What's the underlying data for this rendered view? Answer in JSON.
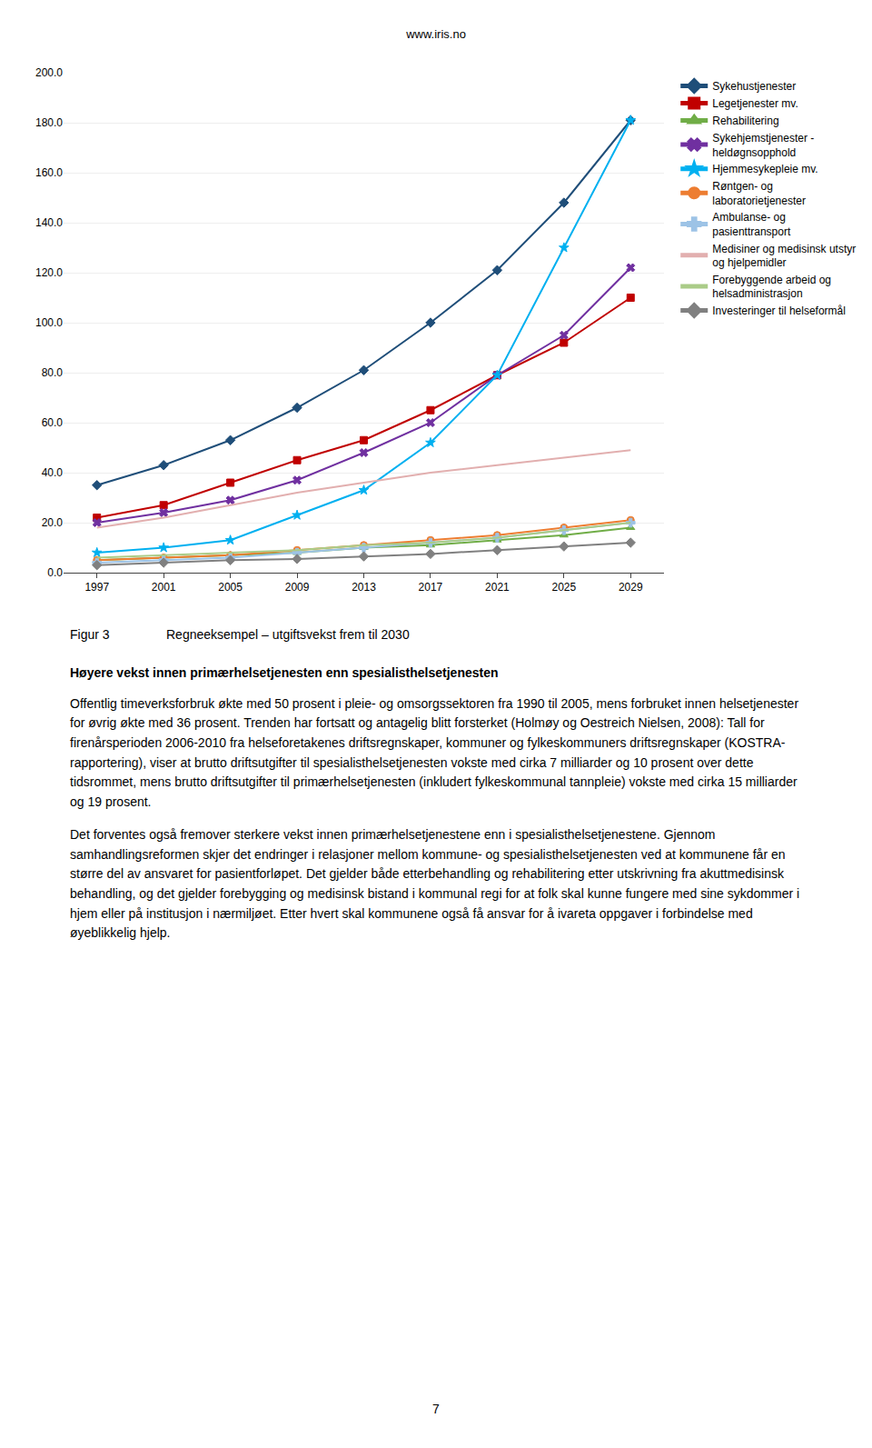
{
  "chart_data": {
    "type": "line",
    "x": [
      1997,
      2001,
      2005,
      2009,
      2013,
      2017,
      2021,
      2025,
      2029
    ],
    "xlim": [
      1995,
      2031
    ],
    "xticks": [
      1997,
      2001,
      2005,
      2009,
      2013,
      2017,
      2021,
      2025,
      2029
    ],
    "ylim": [
      0,
      200
    ],
    "yticks": [
      {
        "value": 0,
        "label": "0.0"
      },
      {
        "value": 20,
        "label": "20.0"
      },
      {
        "value": 40,
        "label": "40.0"
      },
      {
        "value": 60,
        "label": "60.0"
      },
      {
        "value": 80,
        "label": "80.0"
      },
      {
        "value": 100,
        "label": "100.0"
      },
      {
        "value": 120,
        "label": "120.0"
      },
      {
        "value": 140,
        "label": "140.0"
      },
      {
        "value": 160,
        "label": "160.0"
      },
      {
        "value": 180,
        "label": "180.0"
      },
      {
        "value": 200,
        "label": "200.0"
      }
    ],
    "grid": "y",
    "legend": "right",
    "series": [
      {
        "name": "Sykehustjenester",
        "color": "#1F4E79",
        "marker": "diamond",
        "values": [
          35.0,
          43.0,
          53.0,
          66.0,
          81.0,
          100.0,
          121.0,
          148.0,
          181.0
        ]
      },
      {
        "name": "Legetjenester mv.",
        "color": "#C00000",
        "marker": "square",
        "values": [
          22.0,
          27.0,
          36.0,
          45.0,
          53.0,
          65.0,
          79.0,
          92.0,
          110.0
        ]
      },
      {
        "name": "Rehabilitering",
        "color": "#70AD47",
        "marker": "triangle",
        "values": [
          5.0,
          6.0,
          7.0,
          8.0,
          10.0,
          11.0,
          13.0,
          15.0,
          18.0
        ]
      },
      {
        "name": "Sykehjemstjenester -\nheldøgnsopphold",
        "color": "#7030A0",
        "marker": "x",
        "values": [
          20.0,
          24.0,
          29.0,
          37.0,
          48.0,
          60.0,
          79.0,
          95.0,
          122.0
        ]
      },
      {
        "name": "Hjemmesykepleie mv.",
        "color": "#00B0F0",
        "marker": "star",
        "values": [
          8.0,
          10.0,
          13.0,
          23.0,
          33.0,
          52.0,
          79.0,
          130.0,
          181.0
        ]
      },
      {
        "name": "Røntgen- og\nlaboratorietjenester",
        "color": "#ED7D31",
        "marker": "circle",
        "values": [
          5.0,
          6.0,
          7.0,
          9.0,
          11.0,
          13.0,
          15.0,
          18.0,
          21.0
        ]
      },
      {
        "name": "Ambulanse- og\npasienttransport",
        "color": "#9DC3E6",
        "marker": "plus",
        "values": [
          4.0,
          5.0,
          6.0,
          8.0,
          10.0,
          12.0,
          14.0,
          17.0,
          20.0
        ]
      },
      {
        "name": "Medisiner og medisinsk utstyr\nog hjelpemidler",
        "color": "#E2AFAF",
        "marker": "none",
        "values": [
          18.0,
          22.0,
          27.0,
          32.0,
          36.0,
          40.0,
          43.0,
          46.0,
          49.0
        ]
      },
      {
        "name": "Forebyggende arbeid og\nhelsadministrasjon",
        "color": "#AACC88",
        "marker": "none",
        "values": [
          6.0,
          7.0,
          8.0,
          9.0,
          11.0,
          12.0,
          14.0,
          17.0,
          20.0
        ]
      },
      {
        "name": "Investeringer til helseformål",
        "color": "#808080",
        "marker": "diamond",
        "values": [
          3.0,
          4.0,
          5.0,
          5.5,
          6.5,
          7.5,
          9.0,
          10.5,
          12.0
        ]
      }
    ],
    "annotations": [
      "www.iris.no",
      "Figur 3",
      "Regneeksempel – utgiftsvekst frem til 2030",
      "Høyere vekst innen primærhelsetjenesten enn spesialisthelsetjenesten",
      "Offentlig timeverksforbruk økte med 50 prosent i pleie- og omsorgssektoren fra 1990 til 2005, mens forbruket innen helsetjenester for øvrig økte med 36 prosent.  Trenden har fortsatt og antagelig blitt forsterket (Holmøy og Oestreich Nielsen, 2008): Tall for firenårsperioden 2006-2010 fra helseforetakenes driftsregnskaper, kommuner og fylkeskommuners driftsregnskaper (KOSTRA-rapportering), viser at brutto driftsutgifter til spesialisthelsetjenesten vokste med cirka 7 milliarder og 10 prosent over dette tidsrommet, mens brutto driftsutgifter til primærhelsetjenesten (inkludert fylkeskommunal tannpleie) vokste med cirka 15 milliarder og 19 prosent.",
      "Det forventes også fremover sterkere vekst innen primærhelsetjenestene enn i spesialisthelsetjenestene.  Gjennom samhandlingsreformen skjer det endringer i relasjoner mellom kommune- og spesialisthelsetjenesten ved at kommunene får en større del av ansvaret for pasientforløpet.  Det gjelder både etterbehandling og rehabilitering etter utskrivning fra akuttmedisinsk behandling, og det gjelder forebygging og medisinsk bistand i kommunal regi for at folk skal kunne fungere med sine sykdommer i hjem eller på institusjon i nærmiljøet.  Etter hvert skal kommunene også få ansvar for å ivareta oppgaver i forbindelse med øyeblikkelig hjelp.",
      "7"
    ]
  }
}
